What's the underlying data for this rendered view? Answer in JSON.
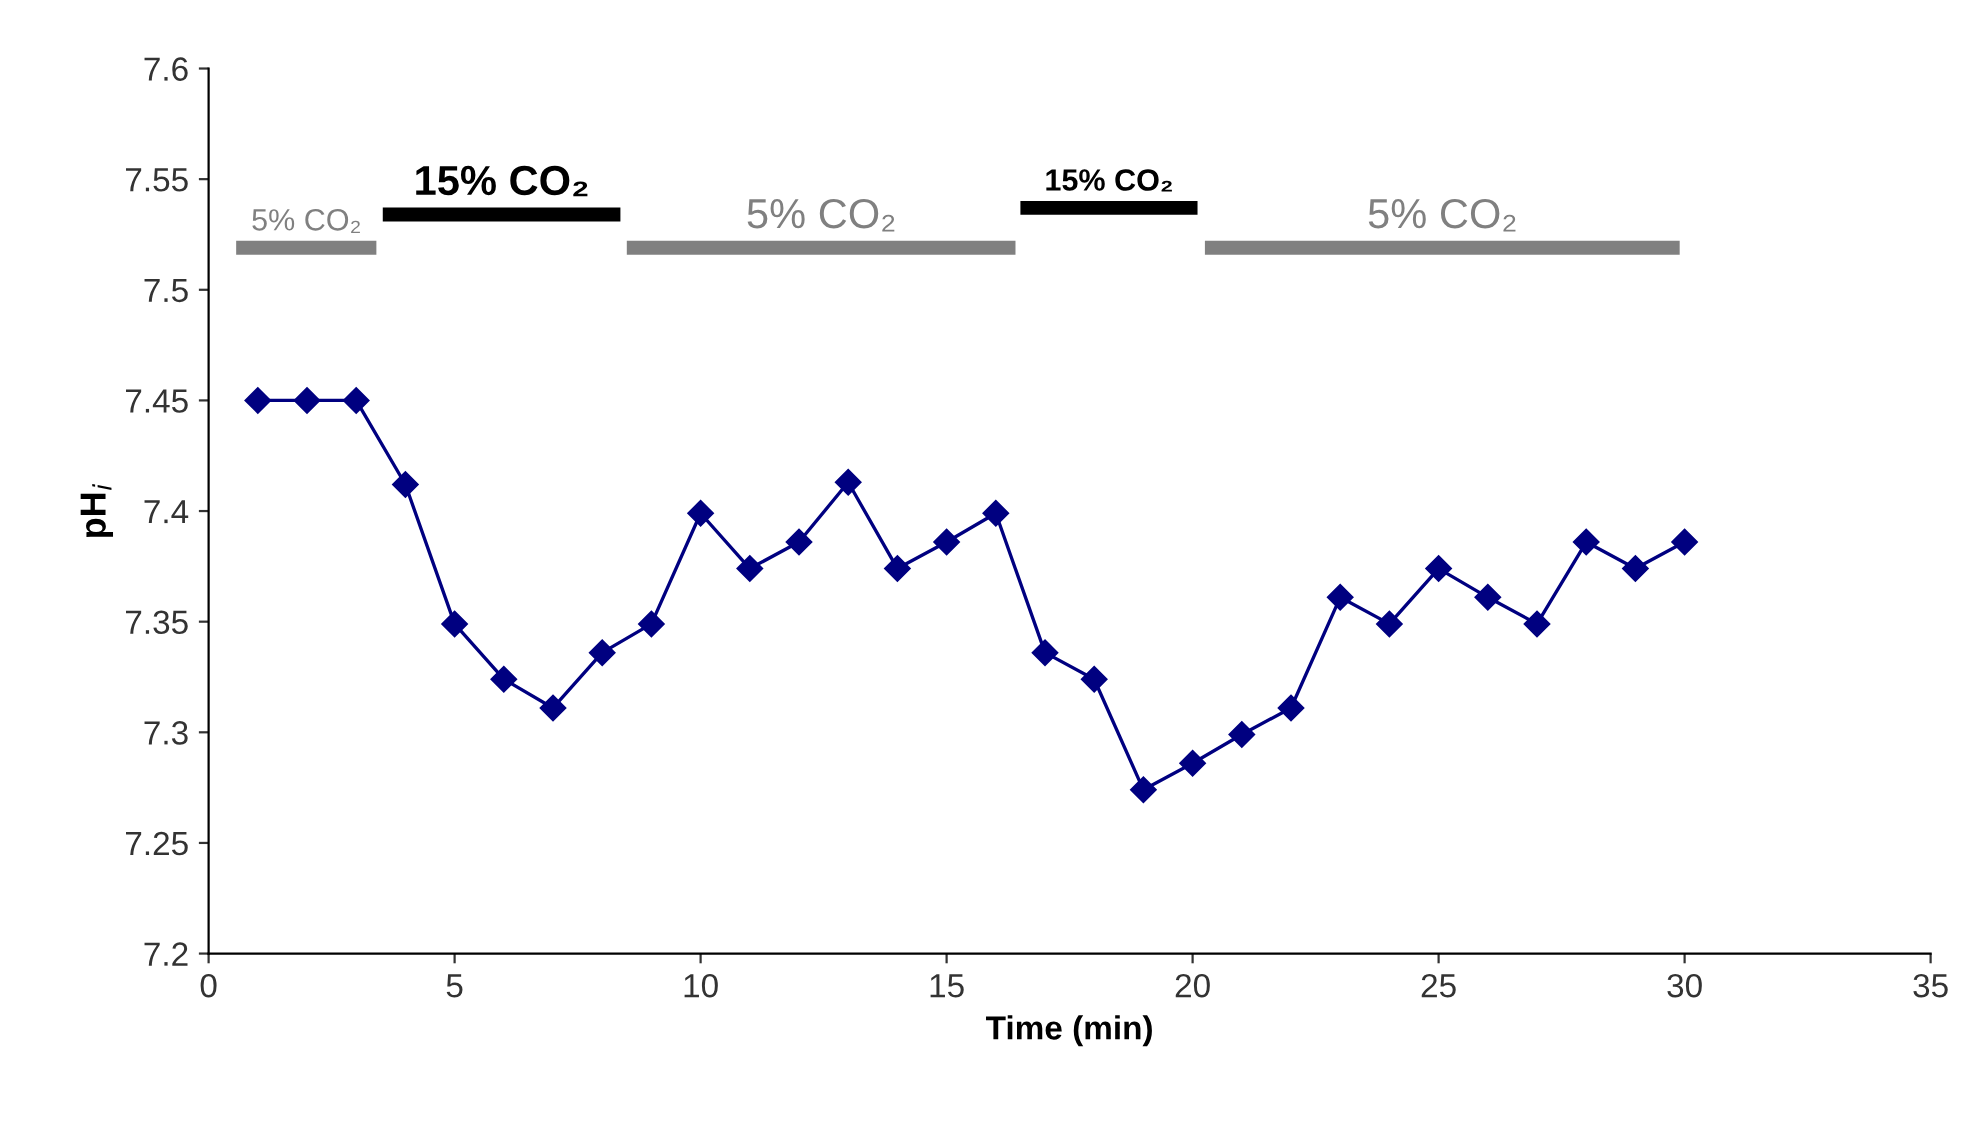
{
  "chart_data": {
    "type": "line",
    "xlabel": "Time (min)",
    "ylabel": "pH$_{i}$",
    "x": [
      1,
      2,
      3,
      4,
      5,
      6,
      7,
      8,
      9,
      10,
      11,
      12,
      13,
      14,
      15,
      16,
      17,
      18,
      19,
      20,
      21,
      22,
      23,
      24,
      25,
      26,
      27,
      28,
      29,
      30
    ],
    "series": [
      {
        "color": "#000080",
        "values": [
          7.45,
          7.45,
          7.45,
          7.412,
          7.349,
          7.324,
          7.311,
          7.336,
          7.349,
          7.399,
          7.374,
          7.386,
          7.413,
          7.374,
          7.386,
          7.399,
          7.336,
          7.324,
          7.274,
          7.286,
          7.299,
          7.311,
          7.361,
          7.349,
          7.374,
          7.361,
          7.349,
          7.386,
          7.374,
          7.386
        ]
      },
      {
        "name": "5% CO₂",
        "color": "#808080",
        "marker": "none",
        "x": [
          0.56,
          3.41
        ],
        "values": [
          7.519,
          7.519
        ]
      },
      {
        "name": "15% CO₂",
        "color": "#000000",
        "marker": "none",
        "x": [
          3.54,
          8.37
        ],
        "values": [
          7.534,
          7.534
        ]
      },
      {
        "name": "5% CO₂",
        "color": "#808080",
        "marker": "none",
        "x": [
          8.5,
          16.4
        ],
        "values": [
          7.519,
          7.519
        ]
      },
      {
        "name": "15% CO₂",
        "color": "#000000",
        "marker": "none",
        "x": [
          16.5,
          20.1
        ],
        "values": [
          7.537,
          7.537
        ]
      },
      {
        "name": "5% CO₂",
        "color": "#808080",
        "marker": "none",
        "x": [
          20.25,
          29.9
        ],
        "values": [
          7.519,
          7.519
        ]
      }
    ],
    "marker": "diamond",
    "line_style": "solid",
    "grid": false,
    "xlim": [
      0,
      35
    ],
    "xticks": [
      0,
      5,
      10,
      15,
      20,
      25,
      30,
      35
    ],
    "ylim": [
      7.2,
      7.6
    ],
    "yticks": [
      7.2,
      7.25,
      7.3,
      7.35,
      7.4,
      7.45,
      7.5,
      7.55,
      7.6
    ]
  }
}
